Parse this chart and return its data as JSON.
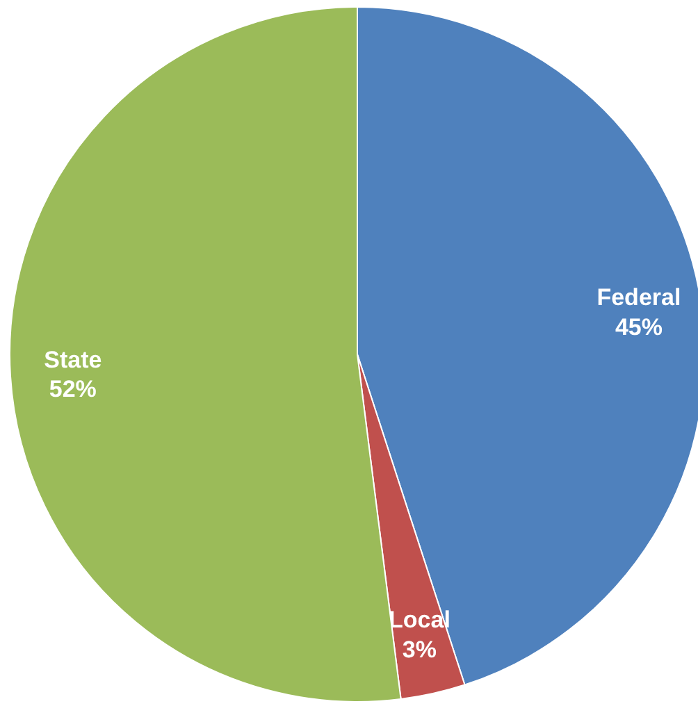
{
  "chart_data": {
    "type": "pie",
    "categories": [
      "Federal",
      "Local",
      "State"
    ],
    "values": [
      45,
      3,
      52
    ],
    "colors": [
      "#4f81bd",
      "#c0504d",
      "#9bbb59"
    ],
    "value_labels": [
      "45%",
      "3%",
      "52%"
    ]
  }
}
